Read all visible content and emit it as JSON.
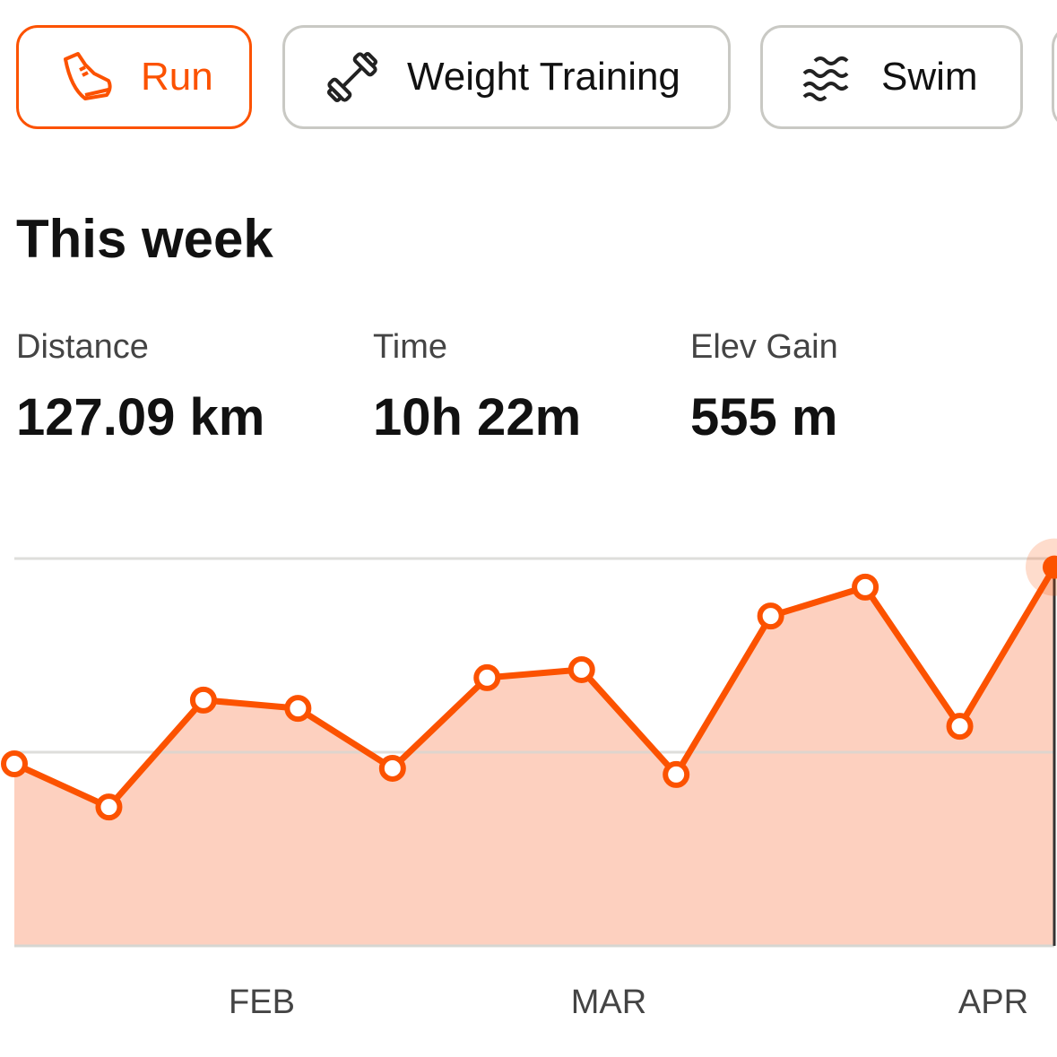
{
  "tabs": [
    "Run",
    "Weight Training",
    "Swim"
  ],
  "heading": "This week",
  "stats": [
    {
      "label": "Distance",
      "value": "127.09 km"
    },
    {
      "label": "Time",
      "value": "10h 22m"
    },
    {
      "label": "Elev Gain",
      "value": "555 m"
    }
  ],
  "chart_data": {
    "type": "area",
    "color": "#fc5200",
    "fill": "#fdd0bf",
    "values": [
      61.1,
      46.6,
      82.5,
      79.7,
      59.6,
      90.0,
      92.7,
      57.5,
      110.7,
      120.4,
      73.7,
      127.1
    ],
    "ylim": [
      0,
      130
    ],
    "grid_values": [
      65,
      130
    ],
    "month_labels": [
      "FEB",
      "MAR",
      "APR"
    ]
  }
}
